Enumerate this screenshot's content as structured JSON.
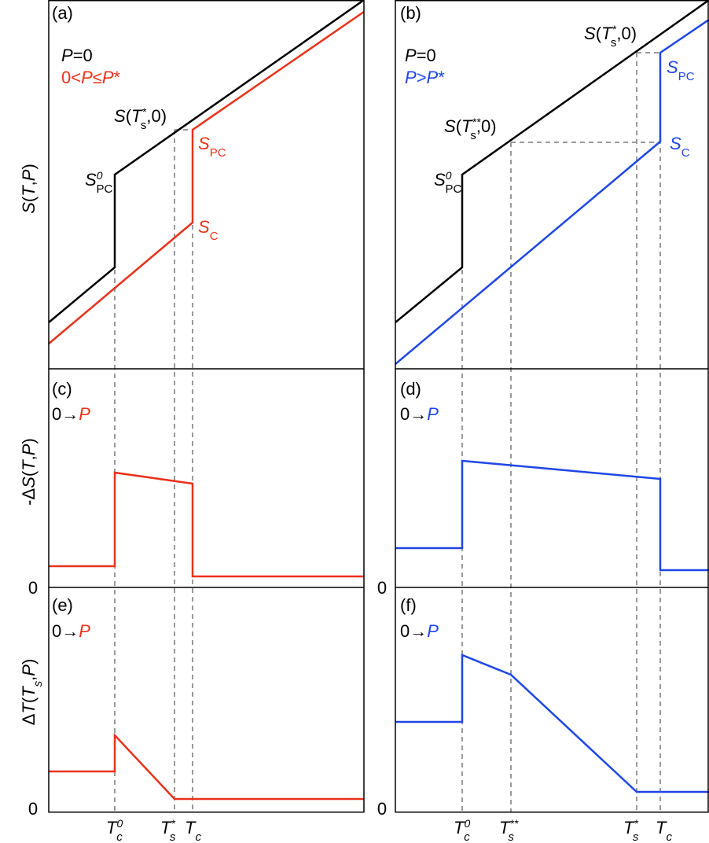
{
  "panels": {
    "a": {
      "tag": "(a)",
      "legend": [
        [
          "P",
          "=0"
        ],
        [
          "0<",
          "P",
          "≤",
          "P",
          "*"
        ]
      ],
      "labels": {
        "s_star": [
          "S",
          "(",
          "T",
          "*",
          "s",
          ",0)"
        ],
        "s0pc": [
          "S",
          "0",
          "PC"
        ],
        "spc": [
          "S",
          "PC"
        ],
        "sc": [
          "S",
          "C"
        ]
      },
      "y_label": [
        "S",
        "(",
        "T",
        ",",
        "P",
        ")"
      ]
    },
    "b": {
      "tag": "(b)",
      "legend": [
        [
          "P",
          "=0"
        ],
        [
          "P",
          ">",
          "P",
          "*"
        ]
      ],
      "labels": {
        "s_star": [
          "S",
          "(",
          "T",
          "*",
          "s",
          ",0)"
        ],
        "s_2star": [
          "S",
          "(",
          "T",
          "**",
          "s",
          ",0)"
        ],
        "s0pc": [
          "S",
          "0",
          "PC"
        ],
        "spc": [
          "S",
          "PC"
        ],
        "sc": [
          "S",
          "C"
        ]
      }
    },
    "c": {
      "tag": "(c)",
      "process": [
        "0→",
        "P"
      ],
      "y_label": [
        "-Δ",
        "S",
        "(",
        "T",
        ",",
        "P",
        ")"
      ],
      "zero": "0"
    },
    "d": {
      "tag": "(d)",
      "process": [
        "0→",
        "P"
      ],
      "zero": "0"
    },
    "e": {
      "tag": "(e)",
      "process": [
        "0→",
        "P"
      ],
      "y_label": [
        "Δ",
        "T",
        "(",
        "T",
        "s",
        ",",
        "P",
        ")"
      ],
      "zero": "0"
    },
    "f": {
      "tag": "(f)",
      "process": [
        "0→",
        "P"
      ],
      "zero": "0"
    }
  },
  "x_labels": {
    "left": [
      [
        "T",
        "0",
        "c"
      ],
      [
        "T",
        "*",
        "s"
      ],
      [
        "T",
        "c"
      ]
    ],
    "right": [
      [
        "T",
        "0",
        "c"
      ],
      [
        "T",
        "**",
        "s"
      ],
      [
        "T",
        "*",
        "s"
      ],
      [
        "T",
        "c"
      ]
    ]
  }
}
